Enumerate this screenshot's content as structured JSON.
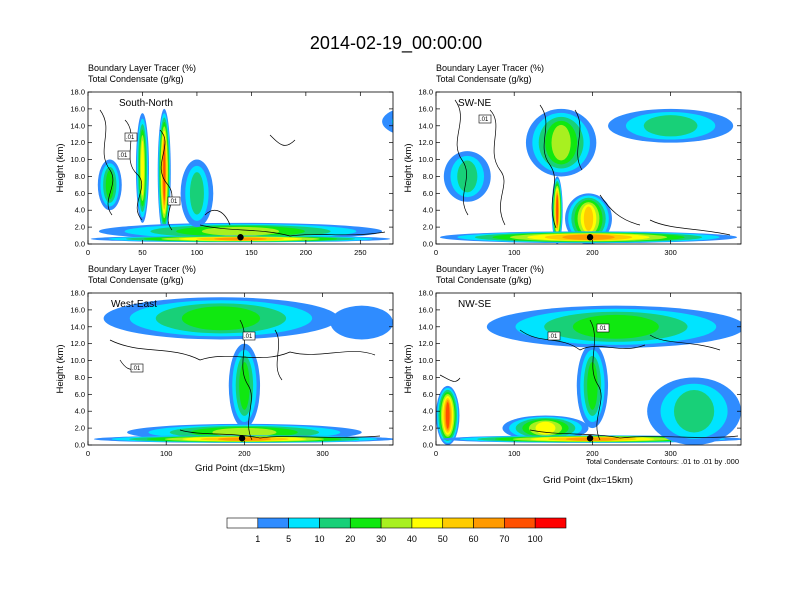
{
  "chart_data": {
    "type": "heatmap",
    "title": "2014-02-19_00:00:00",
    "colorbar": {
      "levels": [
        "1",
        "5",
        "10",
        "20",
        "30",
        "40",
        "50",
        "60",
        "70",
        "100"
      ],
      "colors": [
        "#ffffff",
        "#2f8cff",
        "#00e4ff",
        "#18d078",
        "#10e810",
        "#a8f020",
        "#ffff00",
        "#ffcc00",
        "#ff9a00",
        "#ff5000",
        "#ff0000"
      ]
    },
    "shared": {
      "line1": "Boundary Layer Tracer   (%)",
      "line2": "Total Condensate   (g/kg)",
      "ylabel": "Height (km)",
      "xlabel": "Grid Point (dx=15km)",
      "yticks": [
        "0.0",
        "2.0",
        "4.0",
        "6.0",
        "8.0",
        "10.0",
        "12.0",
        "14.0",
        "16.0",
        "18.0"
      ],
      "ylim": [
        0,
        18
      ],
      "contour_label": ".01",
      "contour_note": "Total Condensate Contours: .01 to .01 by .000"
    },
    "panels": [
      {
        "name": "South-North",
        "xlim": [
          0,
          280
        ],
        "xticks": [
          "0",
          "50",
          "100",
          "150",
          "200",
          "250"
        ],
        "xtick_values": [
          0,
          50,
          100,
          150,
          200,
          250
        ],
        "marker_x": 140,
        "tracer_blobs": [
          {
            "x": 70,
            "y": 8.5,
            "w": 12,
            "h": 15,
            "v": 85
          },
          {
            "x": 50,
            "y": 9,
            "w": 12,
            "h": 13,
            "v": 45
          },
          {
            "x": 140,
            "y": 1.5,
            "w": 260,
            "h": 2,
            "v": 35
          },
          {
            "x": 140,
            "y": 0.6,
            "w": 275,
            "h": 0.8,
            "v": 65
          },
          {
            "x": 20,
            "y": 7,
            "w": 22,
            "h": 6,
            "v": 25
          },
          {
            "x": 100,
            "y": 6,
            "w": 30,
            "h": 8,
            "v": 15
          },
          {
            "x": 310,
            "y": 14.5,
            "w": 80,
            "h": 4,
            "v": 20
          }
        ]
      },
      {
        "name": "SW-NE",
        "xlim": [
          0,
          390
        ],
        "xticks": [
          "0",
          "100",
          "200",
          "300"
        ],
        "xtick_values": [
          0,
          100,
          200,
          300
        ],
        "marker_x": 197,
        "tracer_blobs": [
          {
            "x": 160,
            "y": 12,
            "w": 90,
            "h": 8,
            "v": 30
          },
          {
            "x": 155,
            "y": 4,
            "w": 14,
            "h": 8,
            "v": 75
          },
          {
            "x": 195,
            "y": 3,
            "w": 60,
            "h": 6,
            "v": 55
          },
          {
            "x": 195,
            "y": 0.8,
            "w": 380,
            "h": 1.4,
            "v": 60
          },
          {
            "x": 300,
            "y": 14,
            "w": 160,
            "h": 4,
            "v": 12
          },
          {
            "x": 40,
            "y": 8,
            "w": 60,
            "h": 6,
            "v": 15
          }
        ]
      },
      {
        "name": "West-East",
        "xlim": [
          0,
          390
        ],
        "xticks": [
          "0",
          "100",
          "200",
          "300"
        ],
        "xtick_values": [
          0,
          100,
          200,
          300
        ],
        "marker_x": 197,
        "tracer_blobs": [
          {
            "x": 170,
            "y": 15,
            "w": 300,
            "h": 5,
            "v": 25
          },
          {
            "x": 200,
            "y": 7,
            "w": 40,
            "h": 10,
            "v": 25
          },
          {
            "x": 200,
            "y": 1.5,
            "w": 300,
            "h": 2,
            "v": 30
          },
          {
            "x": 200,
            "y": 0.7,
            "w": 385,
            "h": 0.9,
            "v": 65
          },
          {
            "x": 350,
            "y": 14.5,
            "w": 80,
            "h": 4,
            "v": 4
          }
        ]
      },
      {
        "name": "NW-SE",
        "xlim": [
          0,
          390
        ],
        "xticks": [
          "0",
          "100",
          "200",
          "300"
        ],
        "xtick_values": [
          0,
          100,
          200,
          300
        ],
        "marker_x": 197,
        "tracer_blobs": [
          {
            "x": 230,
            "y": 14,
            "w": 330,
            "h": 5,
            "v": 25
          },
          {
            "x": 200,
            "y": 7,
            "w": 40,
            "h": 10,
            "v": 22
          },
          {
            "x": 15,
            "y": 3.5,
            "w": 30,
            "h": 7,
            "v": 80
          },
          {
            "x": 140,
            "y": 2,
            "w": 110,
            "h": 3,
            "v": 45
          },
          {
            "x": 200,
            "y": 0.7,
            "w": 385,
            "h": 0.9,
            "v": 60
          },
          {
            "x": 330,
            "y": 4,
            "w": 120,
            "h": 8,
            "v": 15
          }
        ]
      }
    ]
  }
}
